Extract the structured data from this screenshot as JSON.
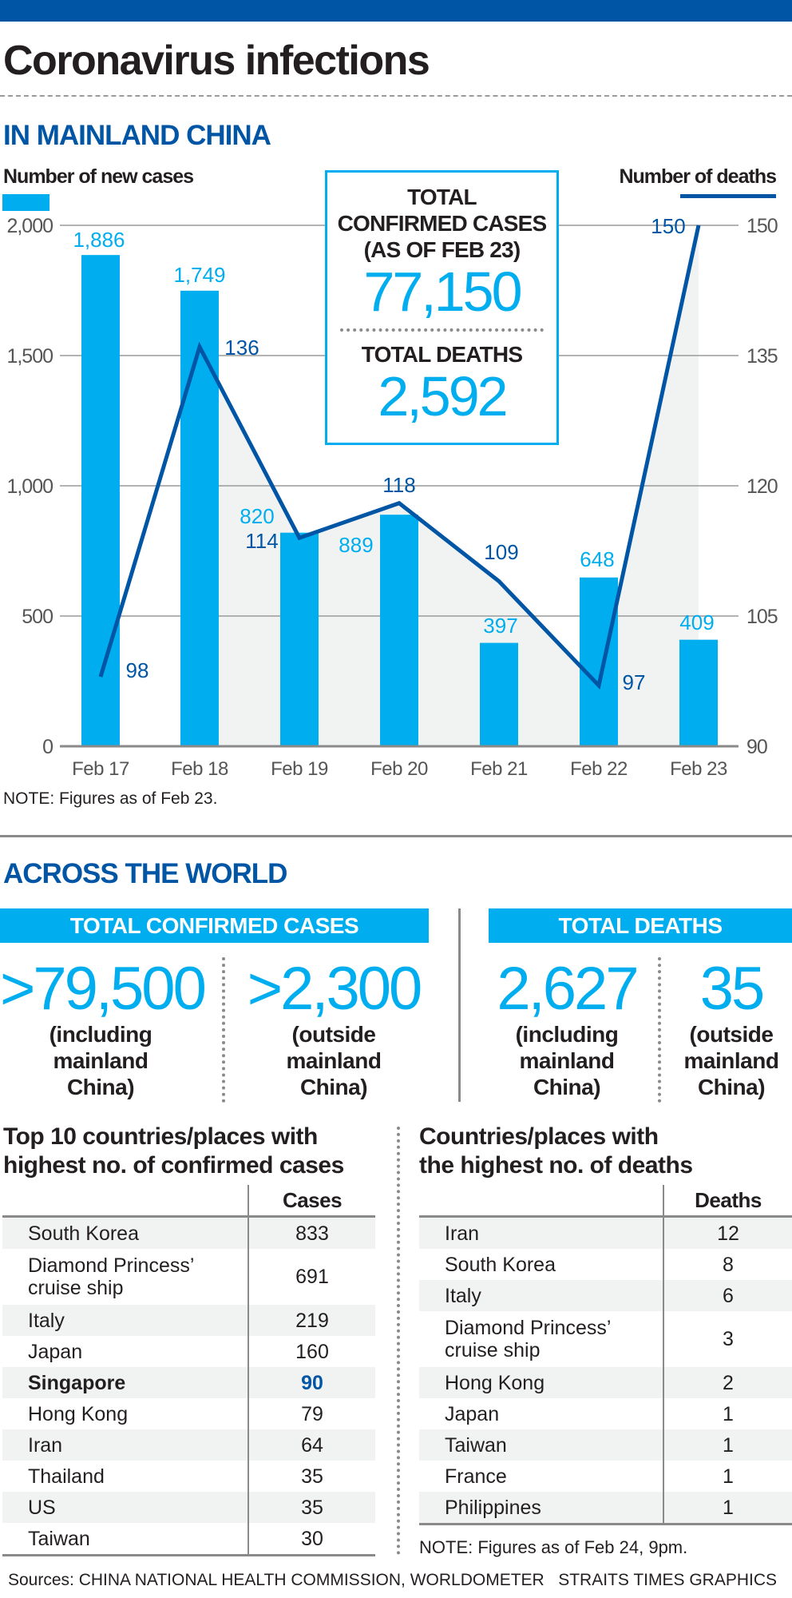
{
  "title": "Coronavirus infections",
  "mainland": {
    "section_title": "IN MAINLAND CHINA",
    "left_axis_title": "Number of new cases",
    "right_axis_title": "Number of deaths",
    "box": {
      "cases_label_1": "TOTAL",
      "cases_label_2": "CONFIRMED CASES",
      "cases_label_3": "(AS OF FEB 23)",
      "cases_value": "77,150",
      "deaths_label": "TOTAL DEATHS",
      "deaths_value": "2,592"
    },
    "note": "NOTE: Figures as of Feb 23."
  },
  "chart_data": {
    "type": "bar",
    "categories": [
      "Feb 17",
      "Feb 18",
      "Feb 19",
      "Feb 20",
      "Feb 21",
      "Feb 22",
      "Feb 23"
    ],
    "series": [
      {
        "name": "Number of new cases",
        "type": "bar",
        "axis": "left",
        "values": [
          1886,
          1749,
          820,
          889,
          397,
          648,
          409
        ],
        "labels": [
          "1,886",
          "1,749",
          "820",
          "889",
          "397",
          "648",
          "409"
        ]
      },
      {
        "name": "Number of deaths",
        "type": "line",
        "axis": "right",
        "values": [
          98,
          136,
          114,
          118,
          109,
          97,
          150
        ],
        "labels": [
          "98",
          "136",
          "114",
          "118",
          "109",
          "97",
          "150"
        ]
      }
    ],
    "left_axis": {
      "ylim": [
        0,
        2000
      ],
      "ticks": [
        0,
        500,
        1000,
        1500,
        2000
      ],
      "tick_labels": [
        "0",
        "500",
        "1,000",
        "1,500",
        "2,000"
      ]
    },
    "right_axis": {
      "ylim": [
        90,
        150
      ],
      "ticks": [
        90,
        105,
        120,
        135,
        150
      ],
      "tick_labels": [
        "90",
        "105",
        "120",
        "135",
        "150"
      ]
    },
    "grid": true,
    "colors": {
      "bars": "#00aeef",
      "line": "#0055a5",
      "shade": "#f1f3f2",
      "grid": "#9a9a9a"
    }
  },
  "world": {
    "section_title": "ACROSS THE WORLD",
    "cases_header": "TOTAL CONFIRMED CASES",
    "deaths_header": "TOTAL DEATHS",
    "stats": [
      {
        "value": ">79,500",
        "l1": "(including",
        "l2": "mainland",
        "l3": "China)"
      },
      {
        "value": ">2,300",
        "l1": "(outside",
        "l2": "mainland",
        "l3": "China)"
      },
      {
        "value": "2,627",
        "l1": "(including",
        "l2": "mainland",
        "l3": "China)"
      },
      {
        "value": "35",
        "l1": "(outside",
        "l2": "mainland",
        "l3": "China)"
      }
    ]
  },
  "cases_table": {
    "title_1": "Top 10 countries/places with",
    "title_2": "highest no. of confirmed cases",
    "header": "Cases",
    "rows": [
      {
        "c": "South Korea",
        "v": "833"
      },
      {
        "c": "Diamond Princess’",
        "c2": "cruise ship",
        "v": "691"
      },
      {
        "c": "Italy",
        "v": "219"
      },
      {
        "c": "Japan",
        "v": "160"
      },
      {
        "c": "Singapore",
        "v": "90"
      },
      {
        "c": "Hong Kong",
        "v": "79"
      },
      {
        "c": "Iran",
        "v": "64"
      },
      {
        "c": "Thailand",
        "v": "35"
      },
      {
        "c": "US",
        "v": "35"
      },
      {
        "c": "Taiwan",
        "v": "30"
      }
    ]
  },
  "deaths_table": {
    "title_1": "Countries/places with",
    "title_2": "the highest no. of deaths",
    "header": "Deaths",
    "rows": [
      {
        "c": "Iran",
        "v": "12"
      },
      {
        "c": "South Korea",
        "v": "8"
      },
      {
        "c": "Italy",
        "v": "6"
      },
      {
        "c": "Diamond Princess’",
        "c2": "cruise ship",
        "v": "3"
      },
      {
        "c": "Hong Kong",
        "v": "2"
      },
      {
        "c": "Japan",
        "v": "1"
      },
      {
        "c": "Taiwan",
        "v": "1"
      },
      {
        "c": "France",
        "v": "1"
      },
      {
        "c": "Philippines",
        "v": "1"
      }
    ],
    "note": "NOTE: Figures as of Feb 24, 9pm."
  },
  "sources": "Sources: CHINA NATIONAL HEALTH COMMISSION, WORLDOMETER   STRAITS TIMES GRAPHICS"
}
